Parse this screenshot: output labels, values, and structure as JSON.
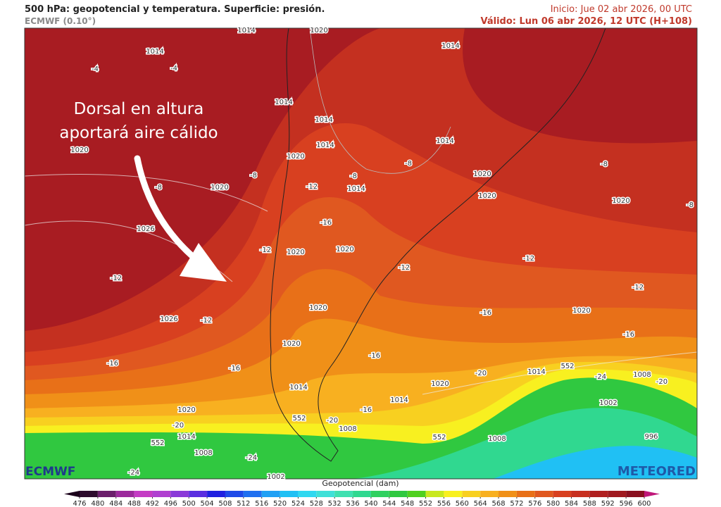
{
  "header": {
    "title": "500 hPa: geopotencial y temperatura. Superficie: presión.",
    "model": "ECMWF (0.10°)",
    "init": "Inicio: Jue 02 abr 2026, 00 UTC",
    "valid": "Válido: Lun 06 abr 2026, 12 UTC (H+108)"
  },
  "annotation": [
    "Dorsal en altura",
    "aportará aire cálido"
  ],
  "map_labels": [
    "1014",
    "1020",
    "1014",
    "1014",
    "-4",
    "-4",
    "1014",
    "1014",
    "1014",
    "1014",
    "1020",
    "1020",
    "-8",
    "-8",
    "1020",
    "-12",
    "-8",
    "1014",
    "-8",
    "1020",
    "-8",
    "1020",
    "1020",
    "-8",
    "1026",
    "-16",
    "-12",
    "1020",
    "1020",
    "-12",
    "-12",
    "-12",
    "-12",
    "1026",
    "-12",
    "1020",
    "-16",
    "1020",
    "-16",
    "1020",
    "-16",
    "-16",
    "-16",
    "1014",
    "552",
    "-20",
    "-24",
    "1008",
    "-20",
    "1014",
    "1020",
    "1002",
    "1014",
    "-16",
    "1020",
    "552",
    "-20",
    "-20",
    "1008",
    "552",
    "1014",
    "552",
    "1008",
    "996",
    "1008",
    "-24",
    "-24",
    "1002"
  ],
  "logos": {
    "left": "ECMWF",
    "right": "METEORED"
  },
  "colorbar": {
    "label": "Geopotencial (dam)",
    "ticks": [
      476,
      480,
      484,
      488,
      492,
      496,
      500,
      504,
      508,
      512,
      516,
      520,
      524,
      528,
      532,
      536,
      540,
      544,
      548,
      552,
      556,
      560,
      564,
      568,
      572,
      576,
      580,
      584,
      588,
      592,
      596,
      600
    ],
    "colors": [
      "#2d0b2d",
      "#6b1f6b",
      "#9c2a9c",
      "#c43cc4",
      "#b040d0",
      "#8a3ad8",
      "#5a2ee0",
      "#2020e0",
      "#1f4ae8",
      "#2070f0",
      "#20a0f4",
      "#20c0f4",
      "#30d8f0",
      "#40e0d8",
      "#40e0b0",
      "#30d890",
      "#30d060",
      "#30c840",
      "#50d020",
      "#c8e820",
      "#f8f020",
      "#f8d020",
      "#f8b020",
      "#f09018",
      "#e87018",
      "#e05820",
      "#d84020",
      "#c83020",
      "#b02020",
      "#a01a20",
      "#8a1020"
    ]
  }
}
